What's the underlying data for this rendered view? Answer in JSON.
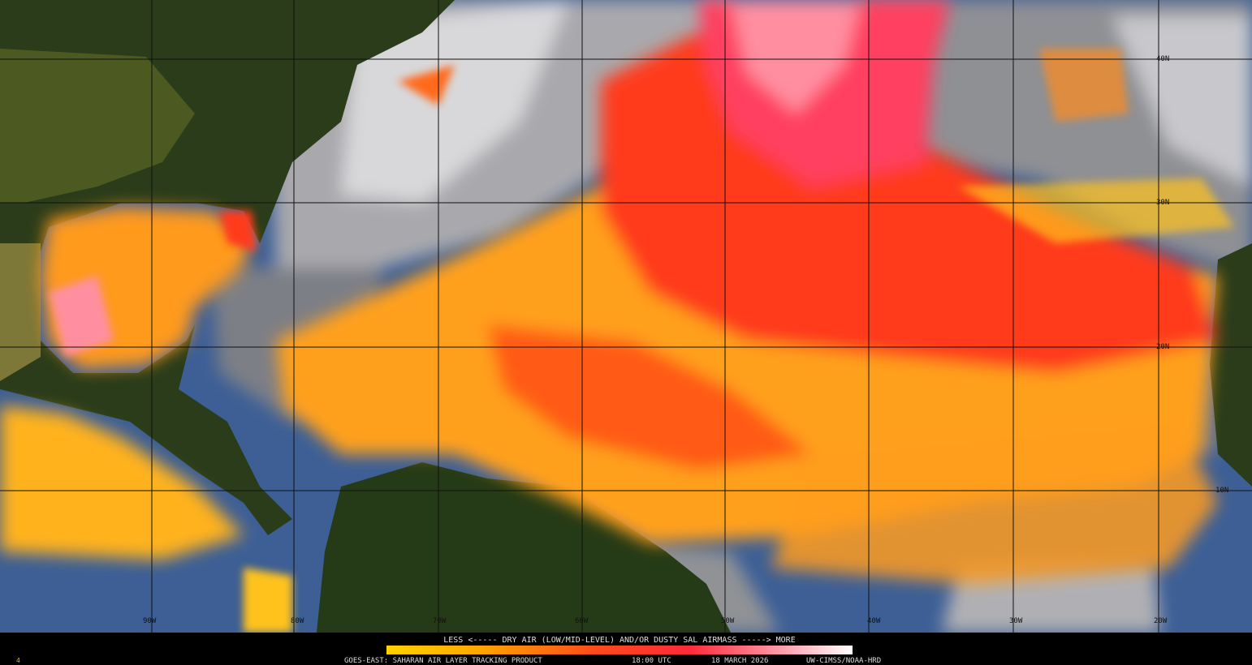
{
  "map": {
    "lat_labels": [
      "40N",
      "30N",
      "20N",
      "10N"
    ],
    "lon_labels": [
      "90W",
      "80W",
      "70W",
      "60W",
      "50W",
      "40W",
      "30W",
      "20W"
    ]
  },
  "legend": {
    "text": "LESS <----- DRY AIR (LOW/MID-LEVEL) AND/OR DUSTY SAL AIRMASS -----> MORE"
  },
  "footer": {
    "product": "GOES-EAST: SAHARAN AIR LAYER TRACKING PRODUCT",
    "time": "18:00 UTC",
    "date": "18 MARCH 2026",
    "credit": "UW-CIMSS/NOAA-HRD",
    "frame": "4"
  }
}
